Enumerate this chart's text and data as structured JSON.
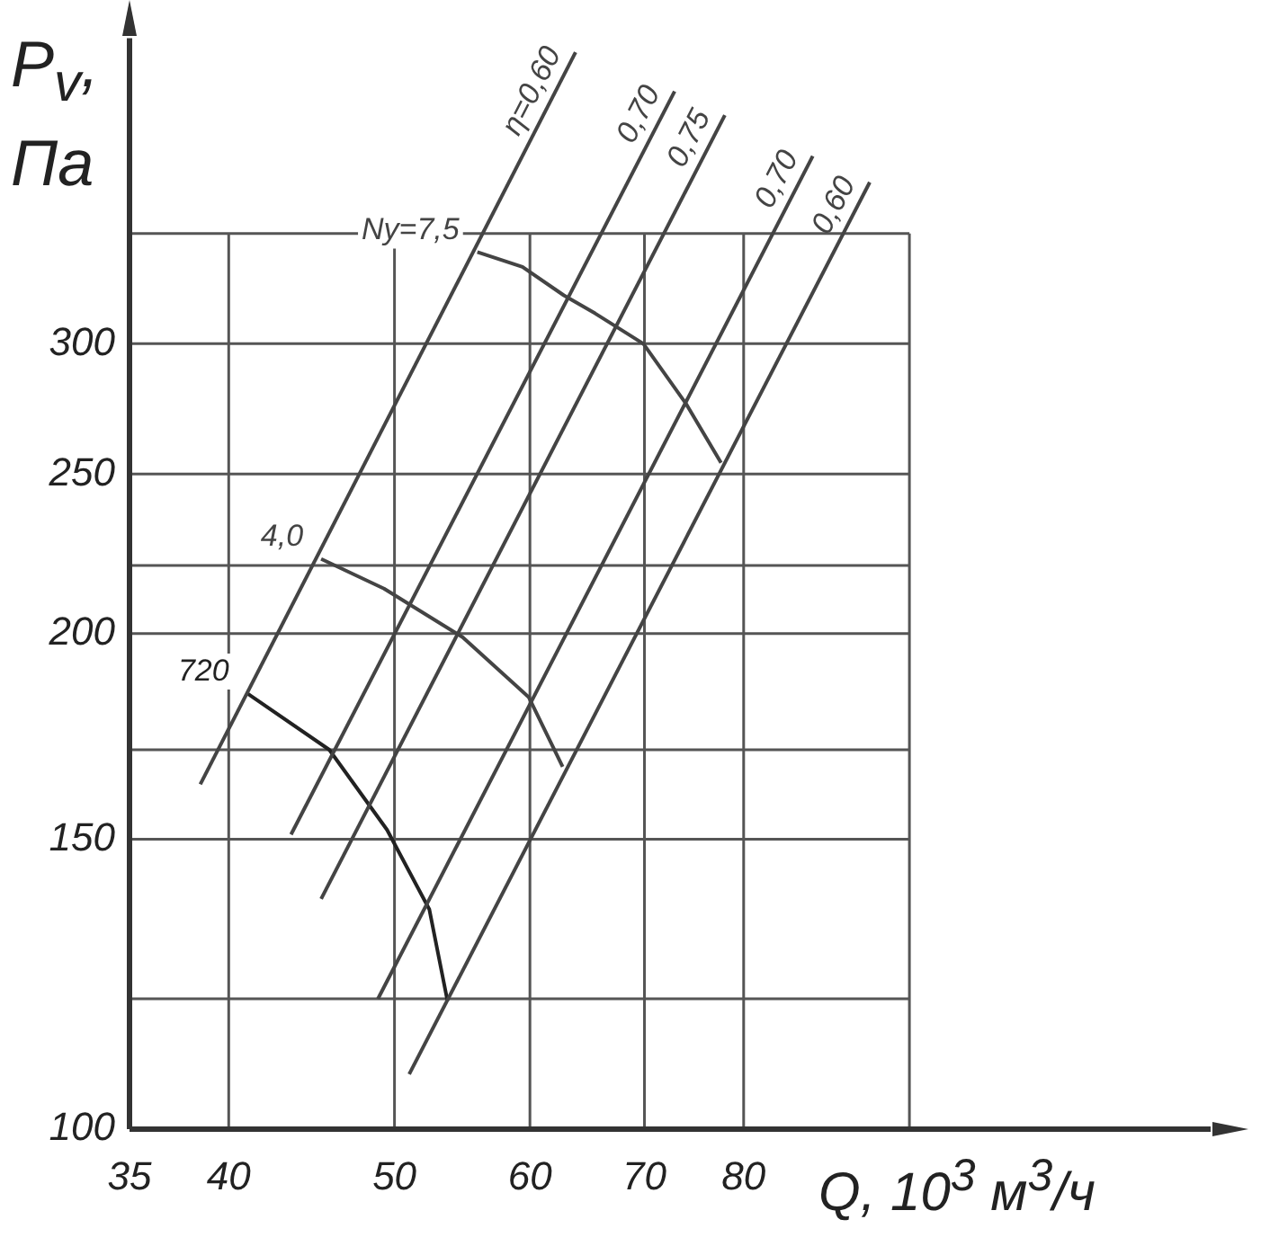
{
  "chart_data": {
    "type": "line",
    "xlabel": "Q, 10$^{3}$ м$^{3}$/ч",
    "ylabel": "P$_{v}$, Па",
    "log": "xy",
    "grid": true,
    "xlim": [
      35,
      150
    ],
    "ylim": [
      100,
      460
    ],
    "xticks": [
      35,
      40,
      50,
      60,
      70,
      80,
      {
        "value": 100,
        "label": null
      }
    ],
    "yticks": [
      100,
      {
        "value": 120,
        "label": null
      },
      150,
      {
        "value": 170,
        "label": null
      },
      200,
      {
        "value": 220,
        "label": null
      },
      250,
      300,
      {
        "value": 350,
        "label": null
      }
    ],
    "series": [
      {
        "name": "η=0,60",
        "color": "#444444",
        "x": [
          38.5,
          63.8
        ],
        "values": [
          162,
          451
        ]
      },
      {
        "name": "0,70",
        "color": "#444444",
        "x": [
          43.5,
          72.9
        ],
        "values": [
          151,
          427
        ]
      },
      {
        "name": "0,75",
        "color": "#444444",
        "x": [
          45.3,
          78.0
        ],
        "values": [
          138,
          413
        ]
      },
      {
        "name": "0,70",
        "color": "#444444",
        "x": [
          48.9,
          87.8
        ],
        "values": [
          120,
          390
        ]
      },
      {
        "name": "0,60",
        "color": "#444444",
        "x": [
          51.0,
          94.8
        ],
        "values": [
          108,
          376
        ]
      },
      {
        "name": "Ny=7,5",
        "color": "#444444",
        "x": [
          55.9,
          59.4,
          62.8,
          65.5,
          69.9,
          74.0,
          77.6
        ],
        "values": [
          341,
          334,
          321,
          313,
          300,
          276,
          254
        ]
      },
      {
        "name": "4,0",
        "color": "#444444",
        "x": [
          45.3,
          49.3,
          54.8,
          59.9,
          62.7
        ],
        "values": [
          222,
          213,
          199,
          183,
          166
        ]
      },
      {
        "name": "720",
        "color": "#222222",
        "x": [
          41.0,
          45.8,
          49.5,
          52.4,
          53.7
        ],
        "values": [
          184,
          170,
          152,
          136,
          119.6
        ]
      }
    ]
  }
}
